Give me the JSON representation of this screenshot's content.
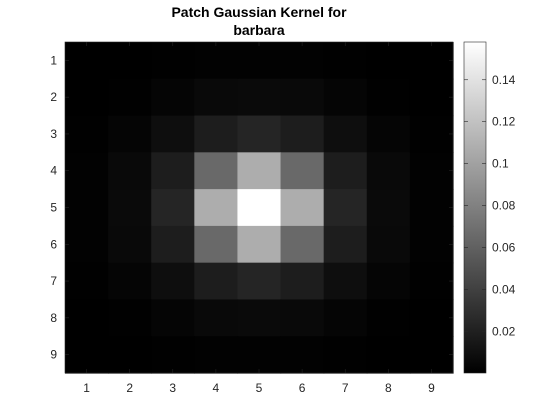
{
  "chart_data": {
    "type": "heatmap",
    "title": [
      "Patch Gaussian Kernel for",
      "barbara"
    ],
    "xlabel": "",
    "ylabel": "",
    "colormap": "gray",
    "x": [
      1,
      2,
      3,
      4,
      5,
      6,
      7,
      8,
      9
    ],
    "y": [
      1,
      2,
      3,
      4,
      5,
      6,
      7,
      8,
      9
    ],
    "xtick_labels": [
      "1",
      "2",
      "3",
      "4",
      "5",
      "6",
      "7",
      "8",
      "9"
    ],
    "ytick_labels": [
      "1",
      "2",
      "3",
      "4",
      "5",
      "6",
      "7",
      "8",
      "9"
    ],
    "values": [
      [
        0.0002,
        0.0004,
        0.001,
        0.0015,
        0.0017,
        0.0015,
        0.001,
        0.0004,
        0.0002
      ],
      [
        0.0004,
        0.001,
        0.003,
        0.0055,
        0.0065,
        0.0055,
        0.003,
        0.001,
        0.0004
      ],
      [
        0.001,
        0.003,
        0.009,
        0.018,
        0.023,
        0.018,
        0.009,
        0.003,
        0.001
      ],
      [
        0.0015,
        0.0055,
        0.018,
        0.065,
        0.107,
        0.065,
        0.018,
        0.0055,
        0.0015
      ],
      [
        0.0017,
        0.0065,
        0.023,
        0.107,
        0.158,
        0.107,
        0.023,
        0.0065,
        0.0017
      ],
      [
        0.0015,
        0.0055,
        0.018,
        0.065,
        0.107,
        0.065,
        0.018,
        0.0055,
        0.0015
      ],
      [
        0.001,
        0.003,
        0.009,
        0.018,
        0.023,
        0.018,
        0.009,
        0.003,
        0.001
      ],
      [
        0.0004,
        0.001,
        0.003,
        0.0055,
        0.0065,
        0.0055,
        0.003,
        0.001,
        0.0004
      ],
      [
        0.0002,
        0.0004,
        0.001,
        0.0015,
        0.0017,
        0.0015,
        0.001,
        0.0004,
        0.0002
      ]
    ],
    "colorbar": {
      "range": [
        0.0002,
        0.158
      ],
      "ticks": [
        0.02,
        0.04,
        0.06,
        0.08,
        0.1,
        0.12,
        0.14
      ],
      "tick_labels": [
        "0.02",
        "0.04",
        "0.06",
        "0.08",
        "0.1",
        "0.12",
        "0.14"
      ]
    }
  }
}
